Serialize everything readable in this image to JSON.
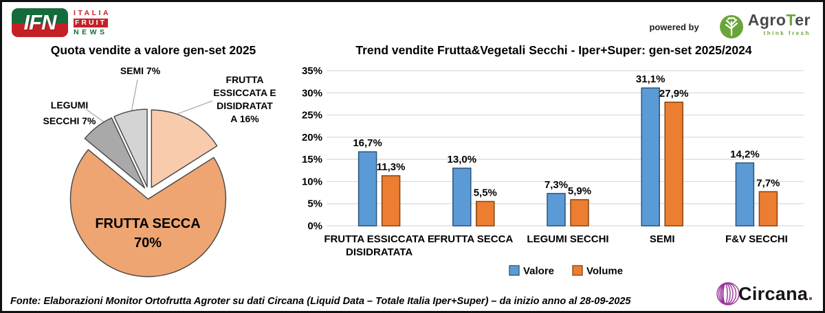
{
  "window": {
    "bg": "#FFFFFF",
    "border": "#111111"
  },
  "header": {
    "ifn": {
      "acronym": "IFN",
      "word1": "ITALIA",
      "word2": "FRUIT",
      "word3": "NEWS",
      "green": "#156B39",
      "red": "#C42127"
    },
    "powered_by": "powered by",
    "agroter": {
      "brand_pre": "Agro",
      "brand_t": "T",
      "brand_post": "er",
      "tagline": "think fresh",
      "green": "#6AA53A"
    }
  },
  "chart_data": [
    {
      "type": "pie",
      "title": "Quota vendite a valore gen-set 2025",
      "start_angle_deg": 0,
      "direction": "clockwise",
      "exploded": true,
      "slice_border": "#444444",
      "slices": [
        {
          "name": "FRUTTA ESSICCATA E DISIDRATATA",
          "value_pct": 16,
          "color": "#F8CBAD",
          "callout_lines": [
            "FRUTTA",
            "ESSICCATA E",
            "DISIDRATAT",
            "A 16%"
          ]
        },
        {
          "name": "FRUTTA SECCA",
          "value_pct": 70,
          "color": "#EEA572",
          "inside_lines": [
            "FRUTTA SECCA",
            "70%"
          ]
        },
        {
          "name": "LEGUMI SECCHI",
          "value_pct": 7,
          "color": "#A9A9A9",
          "callout_lines": [
            "LEGUMI",
            "SECCHI 7%"
          ]
        },
        {
          "name": "SEMI",
          "value_pct": 7,
          "color": "#D4D4D4",
          "callout_lines": [
            "SEMI 7%"
          ]
        }
      ]
    },
    {
      "type": "bar",
      "title": "Trend vendite Frutta&Vegetali Secchi - Iper+Super: gen-set 2025/2024",
      "categories": [
        "FRUTTA ESSICCATA E DISIDRATATA",
        "FRUTTA SECCA",
        "LEGUMI SECCHI",
        "SEMI",
        "F&V SECCHI"
      ],
      "tick_label_lines": [
        [
          "FRUTTA ESSICCATA E",
          "DISIDRATATA"
        ],
        [
          "FRUTTA SECCA"
        ],
        [
          "LEGUMI SECCHI"
        ],
        [
          "SEMI"
        ],
        [
          "F&V SECCHI"
        ]
      ],
      "series": [
        {
          "name": "Valore",
          "color": "#5B9BD5",
          "edge": "#2A527A",
          "values": [
            16.7,
            13.0,
            7.3,
            31.1,
            14.2
          ],
          "value_labels": [
            "16,7%",
            "13,0%",
            "7,3%",
            "31,1%",
            "14,2%"
          ]
        },
        {
          "name": "Volume",
          "color": "#ED7D31",
          "edge": "#84430D",
          "values": [
            11.3,
            5.5,
            5.9,
            27.9,
            7.7
          ],
          "value_labels": [
            "11,3%",
            "5,5%",
            "5,9%",
            "27,9%",
            "7,7%"
          ]
        }
      ],
      "ylim": [
        0,
        35
      ],
      "ytick_step": 5,
      "ytick_labels": [
        "0%",
        "5%",
        "10%",
        "15%",
        "20%",
        "25%",
        "30%",
        "35%"
      ],
      "grid": true,
      "gridline_color": "#D9D9D9",
      "legend_position": "bottom"
    }
  ],
  "footer": {
    "source": "Fonte: Elaborazioni Monitor Ortofrutta Agroter su dati Circana (Liquid Data – Totale Italia Iper+Super) –  da inizio anno al 28-09-2025",
    "circana": {
      "name": "Circana",
      "dot": ".",
      "purple": "#993399"
    }
  }
}
